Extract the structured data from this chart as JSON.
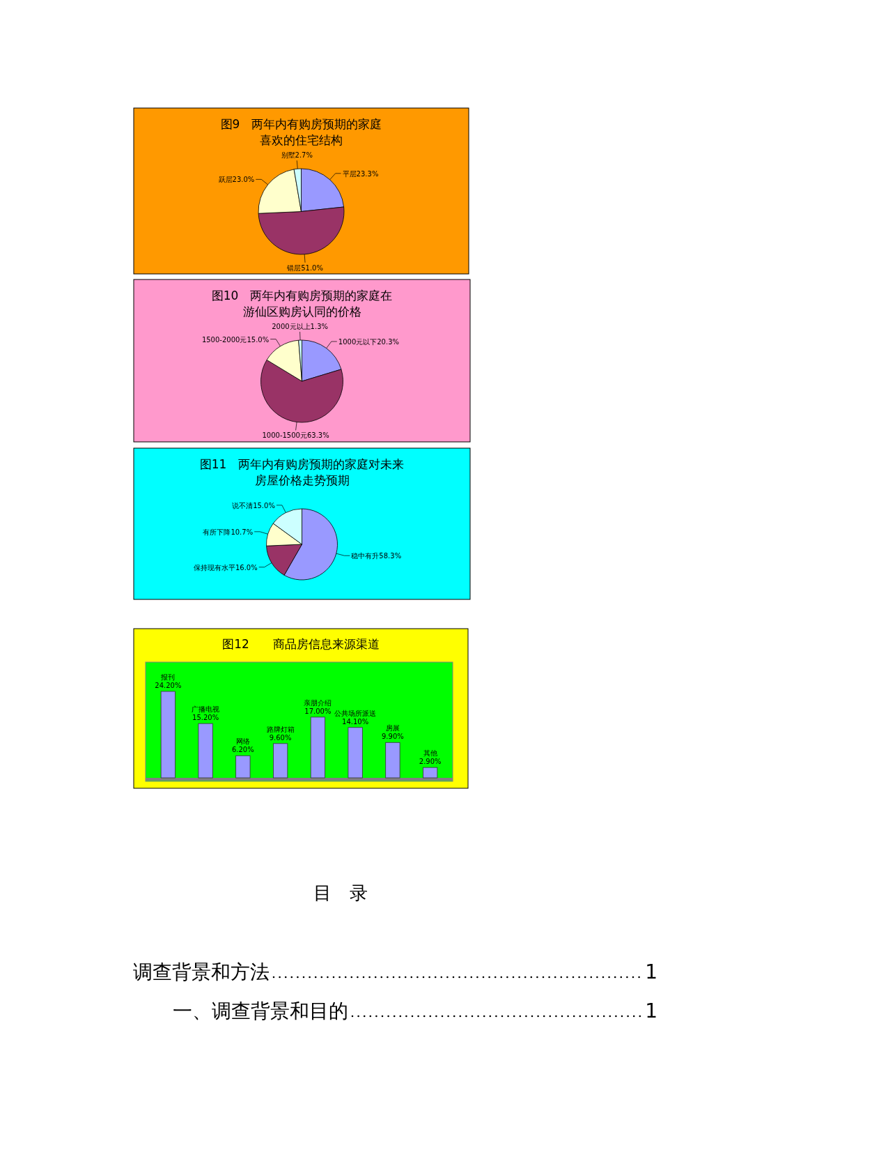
{
  "chart_data": [
    {
      "type": "pie",
      "title": "图9　两年内有购房预期的家庭喜欢的住宅结构",
      "categories": [
        "平层",
        "错层",
        "跃层",
        "别墅"
      ],
      "values": [
        23.3,
        51.0,
        23.0,
        2.7
      ],
      "value_labels": [
        "23.3%",
        "51.0%",
        "23.0%",
        "2.7%"
      ],
      "colors": [
        "#9999ff",
        "#993366",
        "#ffffcc",
        "#ccffff"
      ]
    },
    {
      "type": "pie",
      "title": "图10　两年内有购房预期的家庭在游仙区购房认同的价格",
      "categories": [
        "1000元以下",
        "1000-1500元",
        "1500-2000元",
        "2000元以上"
      ],
      "values": [
        20.3,
        63.3,
        15.0,
        1.3
      ],
      "value_labels": [
        "20.3%",
        "63.3%",
        "15.0%",
        "1.3%"
      ],
      "colors": [
        "#9999ff",
        "#993366",
        "#ffffcc",
        "#ccffff"
      ]
    },
    {
      "type": "pie",
      "title": "图11　两年内有购房预期的家庭对未来房屋价格走势预期",
      "categories": [
        "稳中有升",
        "保持现有水平",
        "有所下降",
        "说不清"
      ],
      "values": [
        58.3,
        16.0,
        10.7,
        15.0
      ],
      "value_labels": [
        "58.3%",
        "16.0%",
        "10.7%",
        "15.0%"
      ],
      "colors": [
        "#9999ff",
        "#993366",
        "#ffffcc",
        "#ccffff"
      ]
    },
    {
      "type": "bar",
      "title": "图12　　商品房信息来源渠道",
      "categories": [
        "报刊",
        "广播电视",
        "网络",
        "路牌灯箱",
        "亲朋介绍",
        "公共场所派送",
        "房展",
        "其他"
      ],
      "values": [
        24.2,
        15.2,
        6.2,
        9.6,
        17.0,
        14.1,
        9.9,
        2.9
      ],
      "value_labels": [
        "24.20%",
        "15.20%",
        "6.20%",
        "9.60%",
        "17.00%",
        "14.10%",
        "9.90%",
        "2.90%"
      ],
      "color": "#9999ff"
    },
    {
      "type": "other",
      "title": "目　录",
      "annotations": [
        "调查背景和方法",
        "1",
        "一、调查背景和目的",
        "1"
      ]
    }
  ]
}
